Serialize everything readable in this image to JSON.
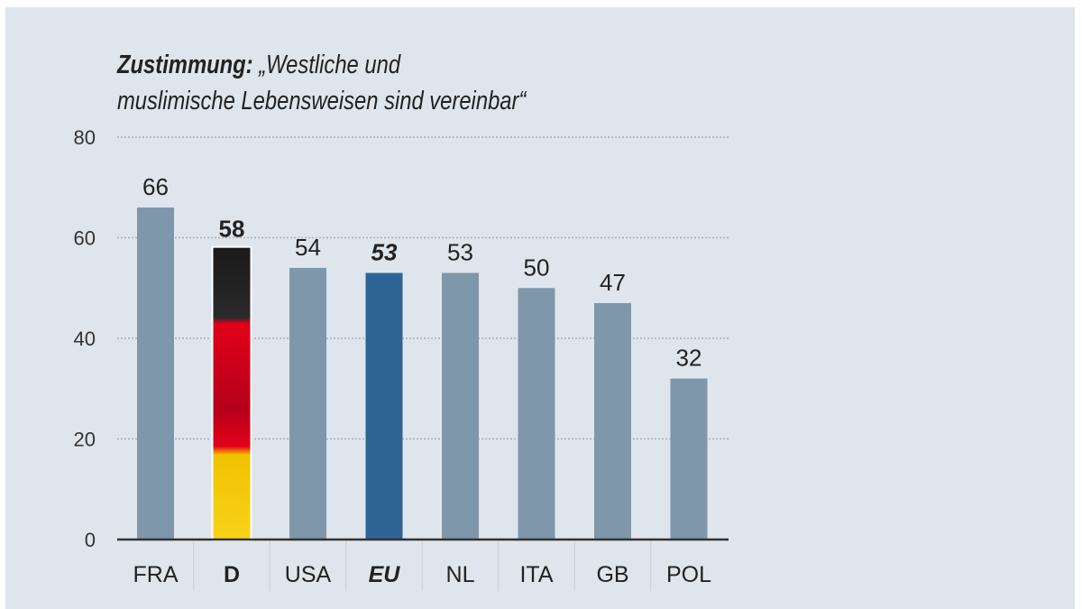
{
  "chart_data": {
    "type": "bar",
    "title_bold": "Zustimmung:",
    "title_line1": "„Westliche und",
    "title_line2": "muslimische Lebensweisen sind vereinbar“",
    "categories": [
      "FRA",
      "D",
      "USA",
      "EU",
      "NL",
      "ITA",
      "GB",
      "POL"
    ],
    "values": [
      66,
      58,
      54,
      53,
      53,
      50,
      47,
      32
    ],
    "highlight": {
      "D": "german-flag",
      "EU": "#2e6495"
    },
    "bold_labels": [
      "D",
      "EU"
    ],
    "italic_labels": [
      "EU"
    ],
    "ylim": [
      0,
      80
    ],
    "yticks": [
      "0",
      "20",
      "40",
      "60",
      "80"
    ],
    "grid": true,
    "xlabel": "",
    "ylabel": "",
    "colors": {
      "bar": "#7f97aa",
      "eu": "#2e6495",
      "background": "#dfe5ec"
    }
  }
}
